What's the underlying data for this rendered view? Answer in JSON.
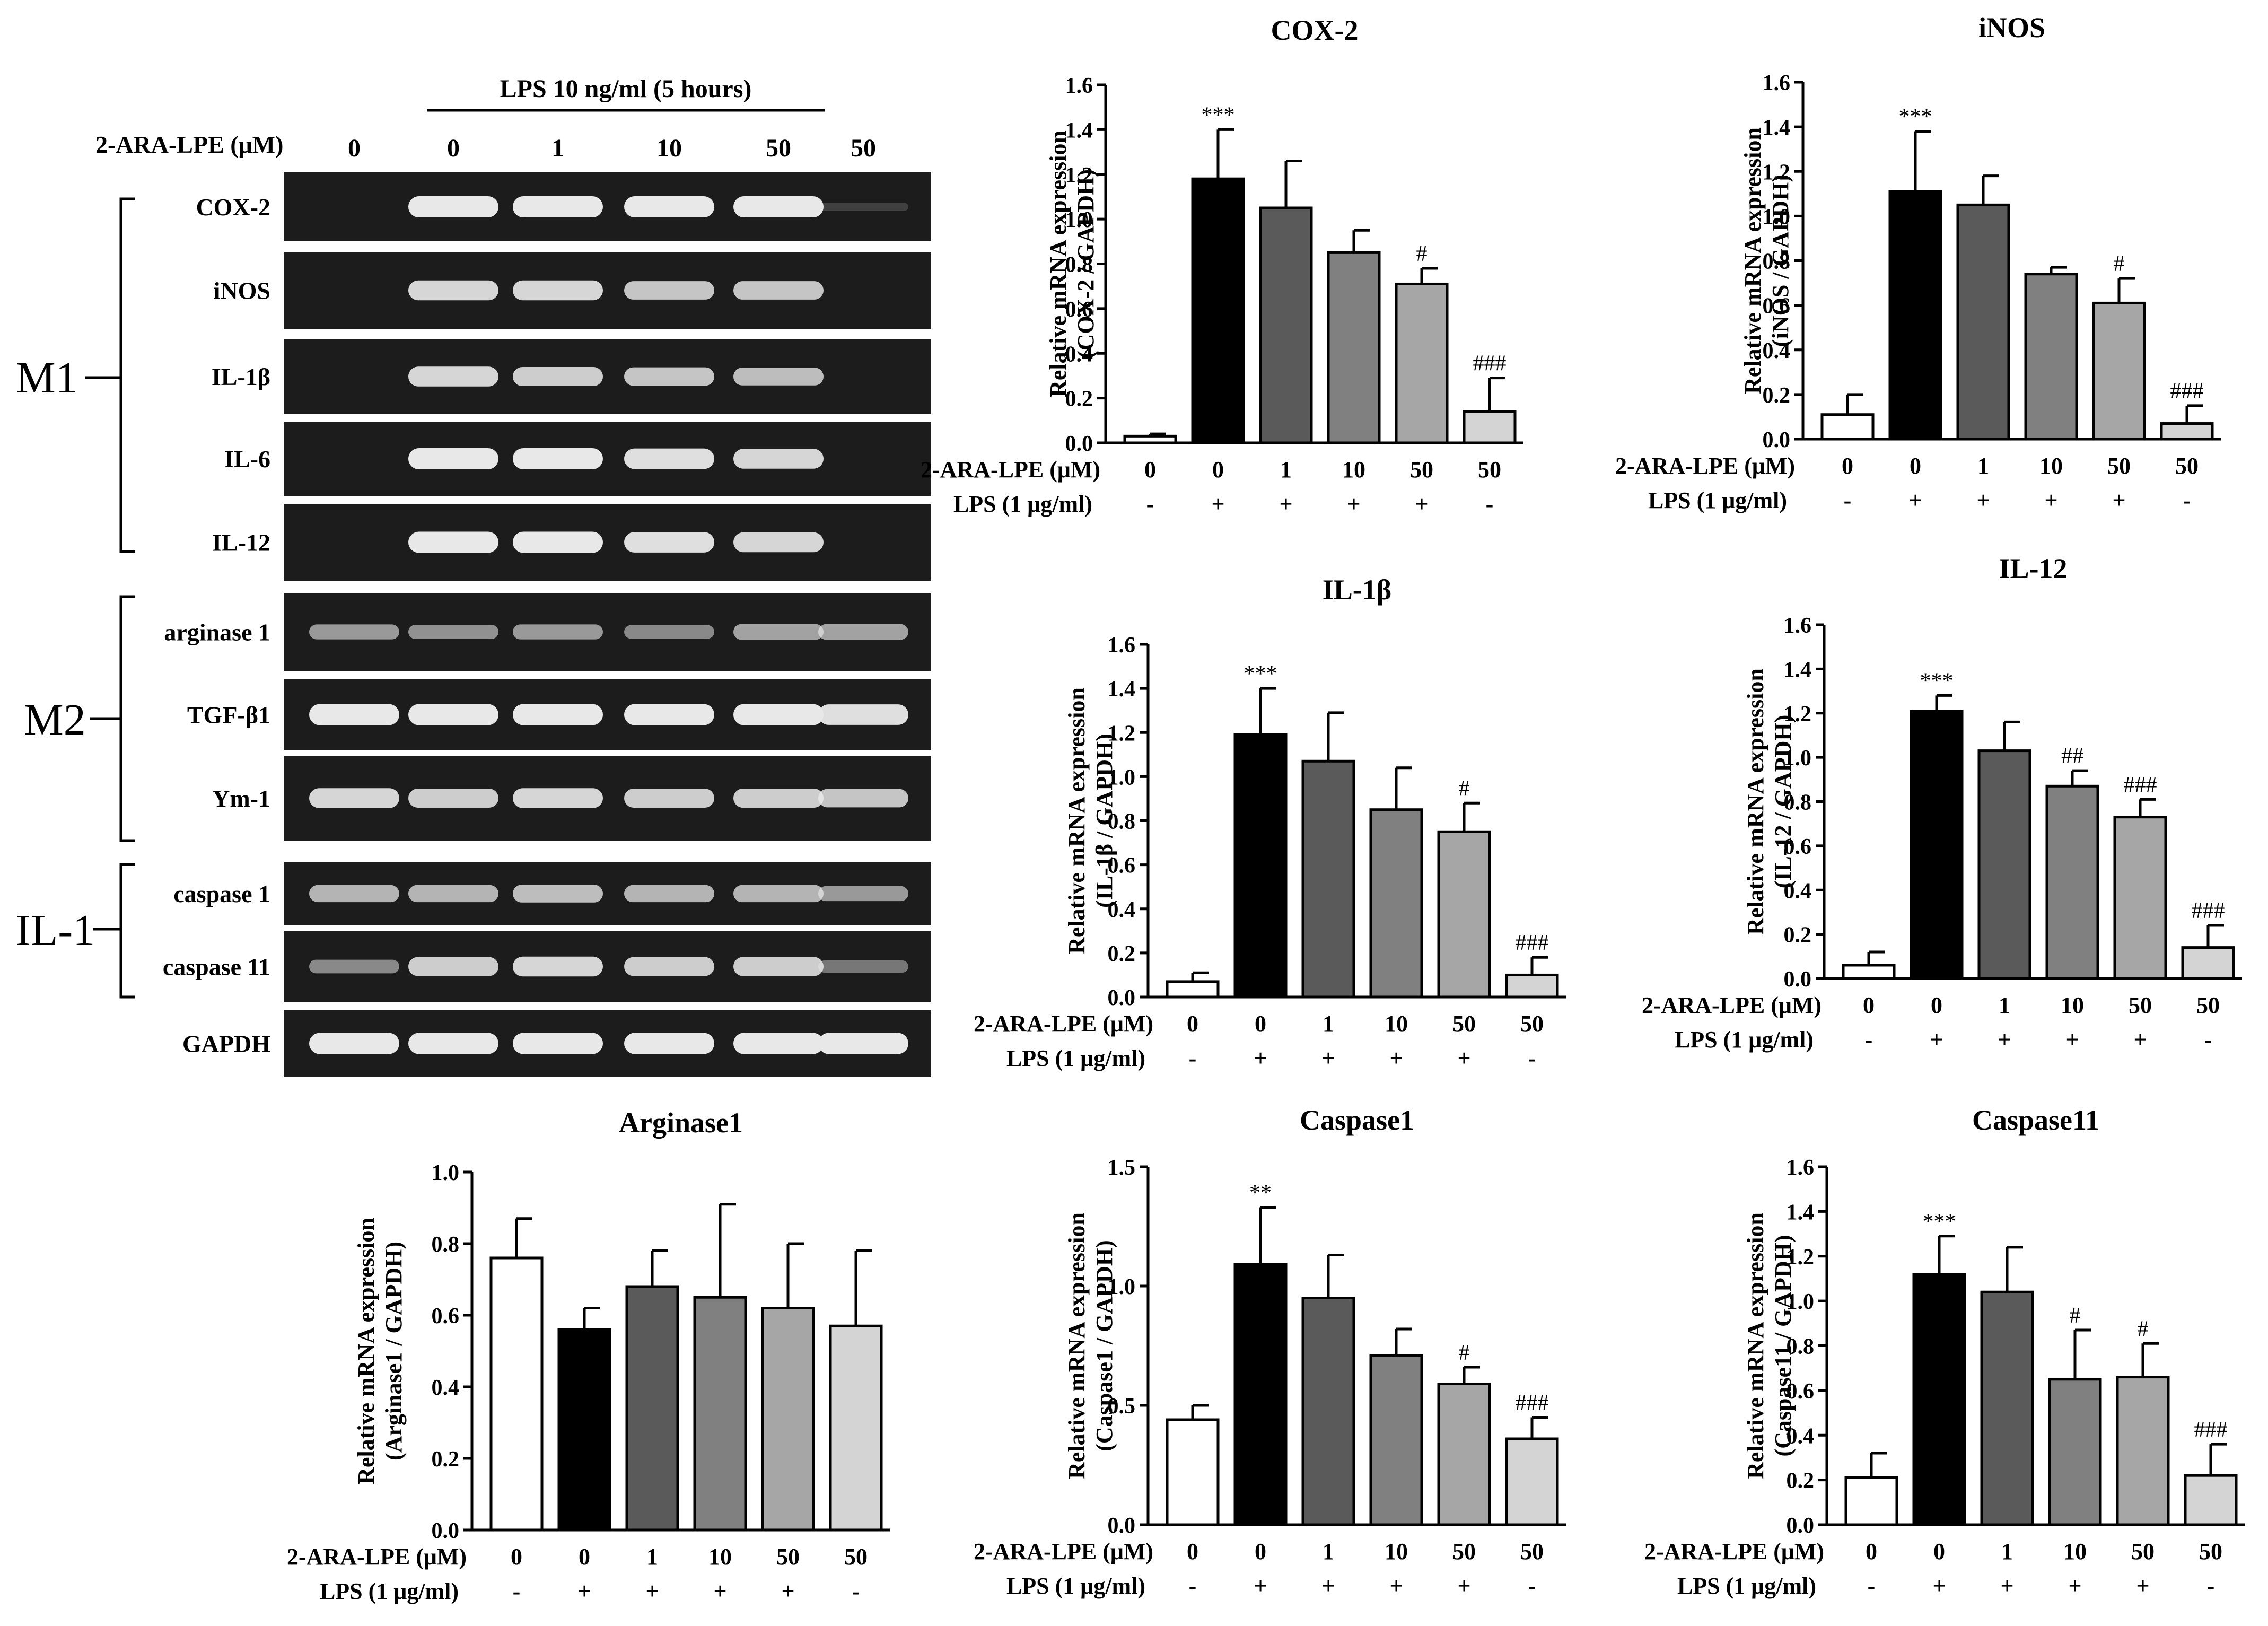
{
  "gel": {
    "lps_header": "LPS 10 ng/ml (5 hours)",
    "dose_label": "2-ARA-LPE (μM)",
    "doses": [
      "0",
      "0",
      "1",
      "10",
      "50",
      "50"
    ],
    "groups": [
      {
        "name": "M1",
        "rows": [
          "COX-2",
          "iNOS",
          "IL-1β",
          "IL-6",
          "IL-12"
        ]
      },
      {
        "name": "M2",
        "rows": [
          "arginase 1",
          "TGF-β1",
          "Ym-1"
        ]
      },
      {
        "name": "IL-1",
        "rows": [
          "caspase 1",
          "caspase 11"
        ]
      }
    ],
    "loading_control": "GAPDH",
    "band_intensity": {
      "COX-2": [
        0,
        1,
        1,
        1,
        1,
        0.03
      ],
      "iNOS": [
        0,
        0.9,
        0.9,
        0.8,
        0.8,
        0
      ],
      "IL-1β": [
        0,
        0.9,
        0.85,
        0.8,
        0.75,
        0
      ],
      "IL-6": [
        0,
        1,
        1,
        0.95,
        0.9,
        0
      ],
      "IL-12": [
        0,
        1,
        1,
        0.95,
        0.9,
        0
      ],
      "arginase 1": [
        0.55,
        0.5,
        0.55,
        0.45,
        0.6,
        0.6
      ],
      "TGF-β1": [
        1,
        1,
        1,
        1,
        1,
        0.95
      ],
      "Ym-1": [
        0.9,
        0.85,
        0.9,
        0.85,
        0.85,
        0.8
      ],
      "caspase 1": [
        0.7,
        0.7,
        0.75,
        0.7,
        0.7,
        0.55
      ],
      "caspase 11": [
        0.45,
        0.85,
        0.9,
        0.85,
        0.85,
        0.35
      ],
      "GAPDH": [
        1,
        1,
        1,
        1,
        1,
        1
      ]
    }
  },
  "chart_data": [
    {
      "type": "bar",
      "title": "COX-2",
      "ylabel_line1": "Relative mRNA expression",
      "ylabel_line2": "(COX-2 / GAPDH)",
      "ylim": [
        0,
        1.6
      ],
      "yticks": [
        "0.0",
        "0.2",
        "0.4",
        "0.6",
        "0.8",
        "1.0",
        "1.2",
        "1.4",
        "1.6"
      ],
      "categories": [
        "0",
        "0",
        "1",
        "10",
        "50",
        "50"
      ],
      "lps": [
        "-",
        "+",
        "+",
        "+",
        "+",
        "-"
      ],
      "values": [
        0.03,
        1.18,
        1.05,
        0.85,
        0.71,
        0.14
      ],
      "errors": [
        0.01,
        0.22,
        0.21,
        0.1,
        0.07,
        0.15
      ],
      "annotations": [
        "",
        "***",
        "",
        "",
        "#",
        "###"
      ]
    },
    {
      "type": "bar",
      "title": "iNOS",
      "ylabel_line1": "Relative mRNA expression",
      "ylabel_line2": "(iNOS / GAPDH)",
      "ylim": [
        0,
        1.6
      ],
      "yticks": [
        "0.0",
        "0.2",
        "0.4",
        "0.6",
        "0.8",
        "1.0",
        "1.2",
        "1.4",
        "1.6"
      ],
      "categories": [
        "0",
        "0",
        "1",
        "10",
        "50",
        "50"
      ],
      "lps": [
        "-",
        "+",
        "+",
        "+",
        "+",
        "-"
      ],
      "values": [
        0.11,
        1.11,
        1.05,
        0.74,
        0.61,
        0.07
      ],
      "errors": [
        0.09,
        0.27,
        0.13,
        0.03,
        0.11,
        0.08
      ],
      "annotations": [
        "",
        "***",
        "",
        "",
        "#",
        "###"
      ]
    },
    {
      "type": "bar",
      "title": "IL-1β",
      "ylabel_line1": "Relative mRNA expression",
      "ylabel_line2": "(IL-1β / GAPDH)",
      "ylim": [
        0,
        1.6
      ],
      "yticks": [
        "0.0",
        "0.2",
        "0.4",
        "0.6",
        "0.8",
        "1.0",
        "1.2",
        "1.4",
        "1.6"
      ],
      "categories": [
        "0",
        "0",
        "1",
        "10",
        "50",
        "50"
      ],
      "lps": [
        "-",
        "+",
        "+",
        "+",
        "+",
        "-"
      ],
      "values": [
        0.07,
        1.19,
        1.07,
        0.85,
        0.75,
        0.1
      ],
      "errors": [
        0.04,
        0.21,
        0.22,
        0.19,
        0.13,
        0.08
      ],
      "annotations": [
        "",
        "***",
        "",
        "",
        "#",
        "###"
      ]
    },
    {
      "type": "bar",
      "title": "IL-12",
      "ylabel_line1": "Relative mRNA expression",
      "ylabel_line2": "(IL-12 / GAPDH)",
      "ylim": [
        0,
        1.6
      ],
      "yticks": [
        "0.0",
        "0.2",
        "0.4",
        "0.6",
        "0.8",
        "1.0",
        "1.2",
        "1.4",
        "1.6"
      ],
      "categories": [
        "0",
        "0",
        "1",
        "10",
        "50",
        "50"
      ],
      "lps": [
        "-",
        "+",
        "+",
        "+",
        "+",
        "-"
      ],
      "values": [
        0.06,
        1.21,
        1.03,
        0.87,
        0.73,
        0.14
      ],
      "errors": [
        0.06,
        0.07,
        0.13,
        0.07,
        0.08,
        0.1
      ],
      "annotations": [
        "",
        "***",
        "",
        "##",
        "###",
        "###"
      ]
    },
    {
      "type": "bar",
      "title": "Arginase1",
      "ylabel_line1": "Relative mRNA expression",
      "ylabel_line2": "(Arginase1 / GAPDH)",
      "ylim": [
        0,
        1.0
      ],
      "yticks": [
        "0.0",
        "0.2",
        "0.4",
        "0.6",
        "0.8",
        "1.0"
      ],
      "categories": [
        "0",
        "0",
        "1",
        "10",
        "50",
        "50"
      ],
      "lps": [
        "-",
        "+",
        "+",
        "+",
        "+",
        "-"
      ],
      "values": [
        0.76,
        0.56,
        0.68,
        0.65,
        0.62,
        0.57
      ],
      "errors": [
        0.11,
        0.06,
        0.1,
        0.26,
        0.18,
        0.21
      ],
      "annotations": [
        "",
        "",
        "",
        "",
        "",
        ""
      ]
    },
    {
      "type": "bar",
      "title": "Caspase1",
      "ylabel_line1": "Relative mRNA expression",
      "ylabel_line2": "(Caspase1 / GAPDH)",
      "ylim": [
        0,
        1.5
      ],
      "yticks": [
        "0.0",
        "0.5",
        "1.0",
        "1.5"
      ],
      "categories": [
        "0",
        "0",
        "1",
        "10",
        "50",
        "50"
      ],
      "lps": [
        "-",
        "+",
        "+",
        "+",
        "+",
        "-"
      ],
      "values": [
        0.44,
        1.09,
        0.95,
        0.71,
        0.59,
        0.36
      ],
      "errors": [
        0.06,
        0.24,
        0.18,
        0.11,
        0.07,
        0.09
      ],
      "annotations": [
        "",
        "**",
        "",
        "",
        "#",
        "###"
      ]
    },
    {
      "type": "bar",
      "title": "Caspase11",
      "ylabel_line1": "Relative mRNA expression",
      "ylabel_line2": "(Caspase11 / GAPDH)",
      "ylim": [
        0,
        1.6
      ],
      "yticks": [
        "0.0",
        "0.2",
        "0.4",
        "0.6",
        "0.8",
        "1.0",
        "1.2",
        "1.4",
        "1.6"
      ],
      "categories": [
        "0",
        "0",
        "1",
        "10",
        "50",
        "50"
      ],
      "lps": [
        "-",
        "+",
        "+",
        "+",
        "+",
        "-"
      ],
      "values": [
        0.21,
        1.12,
        1.04,
        0.65,
        0.66,
        0.22
      ],
      "errors": [
        0.11,
        0.17,
        0.2,
        0.22,
        0.15,
        0.14
      ],
      "annotations": [
        "",
        "***",
        "",
        "#",
        "#",
        "###"
      ]
    }
  ],
  "axis_labels": {
    "dose_label": "2-ARA-LPE (μM)",
    "lps_label": "LPS (1 μg/ml)"
  },
  "colors": {
    "bars": [
      "#ffffff",
      "#000000",
      "#5a5a5a",
      "#808080",
      "#a6a6a6",
      "#d4d4d4"
    ],
    "gel_bg": "#1c1c1c",
    "band": "#e8e8e8"
  }
}
